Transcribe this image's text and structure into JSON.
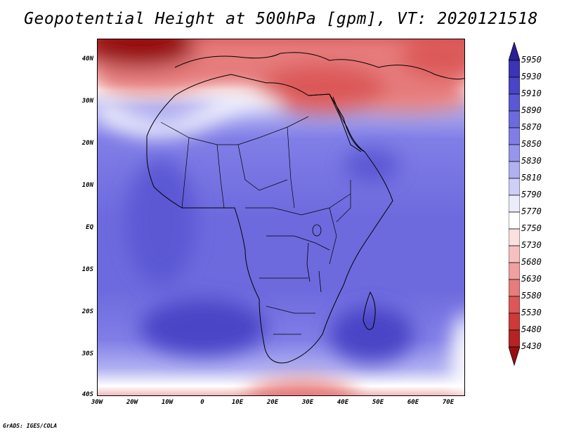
{
  "title": "Geopotential Height at 500hPa [gpm], VT: 2020121518",
  "footer": "GrADS: IGES/COLA",
  "map": {
    "region": "Africa",
    "lon_range": [
      -30,
      75
    ],
    "lat_range": [
      -40,
      45
    ],
    "lat_ticks": [
      "40N",
      "30N",
      "20N",
      "10N",
      "EQ",
      "10S",
      "20S",
      "30S",
      "40S"
    ],
    "lon_ticks": [
      "30W",
      "20W",
      "10W",
      "0",
      "10E",
      "20E",
      "30E",
      "40E",
      "50E",
      "60E",
      "70E"
    ]
  },
  "colorbar": {
    "levels": [
      "5950",
      "5930",
      "5910",
      "5890",
      "5870",
      "5850",
      "5830",
      "5810",
      "5790",
      "5770",
      "5750",
      "5730",
      "5680",
      "5630",
      "5580",
      "5530",
      "5480",
      "5430"
    ],
    "colors": [
      "#2a1f96",
      "#3b34b4",
      "#4a45c6",
      "#5c58d4",
      "#6d6ade",
      "#807ee6",
      "#9696ec",
      "#b0b0f2",
      "#ceceF7",
      "#ececfb",
      "#ffffff",
      "#fbe0e0",
      "#f7c0c0",
      "#f0a0a0",
      "#e67c7c",
      "#dc5858",
      "#cc3a3a",
      "#b42424",
      "#961010"
    ]
  }
}
